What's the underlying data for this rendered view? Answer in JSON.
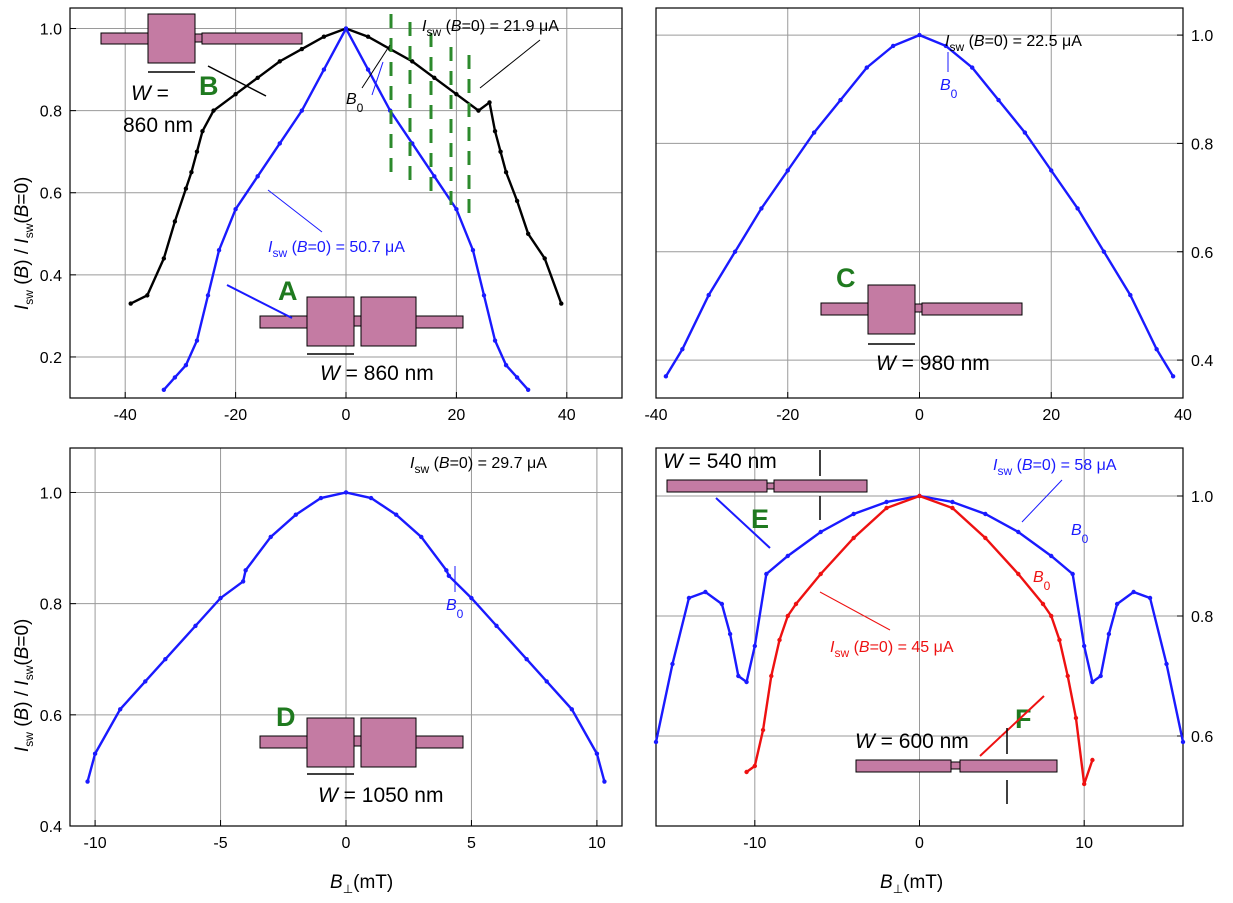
{
  "axis_labels": {
    "y_left": "I_sw (B) / I_sw (B=0)",
    "x_bottom": "B⊥ (mT)"
  },
  "colors": {
    "black": "#000000",
    "blue": "#1a1aff",
    "red": "#ee1111",
    "green_letter": "#1f7a1f",
    "device_fill": "#c47ba3",
    "guide_dash": "#2c8a2c"
  },
  "chart_data": [
    {
      "panel": "top-left",
      "type": "scatter",
      "xlim": [
        -50,
        50
      ],
      "ylim": [
        0.1,
        1.05
      ],
      "xticks": [
        -40,
        -20,
        0,
        20,
        40
      ],
      "yticks": [
        0.2,
        0.4,
        0.6,
        0.8,
        1.0
      ],
      "grid": true,
      "series": [
        {
          "name": "B",
          "color": "#000000",
          "x": [
            -39,
            -36,
            -33,
            -31,
            -29,
            -28,
            -27,
            -26,
            -24,
            -20,
            -16,
            -12,
            -8,
            -4,
            0,
            4,
            8,
            12,
            16,
            20,
            24,
            26,
            27,
            28,
            29,
            31,
            33,
            36,
            39
          ],
          "y": [
            0.33,
            0.35,
            0.44,
            0.53,
            0.61,
            0.65,
            0.7,
            0.75,
            0.8,
            0.84,
            0.88,
            0.92,
            0.95,
            0.98,
            1.0,
            0.98,
            0.95,
            0.92,
            0.88,
            0.84,
            0.8,
            0.82,
            0.75,
            0.7,
            0.65,
            0.58,
            0.5,
            0.44,
            0.33
          ]
        },
        {
          "name": "A",
          "color": "#1a1aff",
          "x": [
            -33,
            -31,
            -29,
            -27,
            -25,
            -23,
            -20,
            -16,
            -12,
            -8,
            -4,
            0,
            4,
            8,
            12,
            16,
            20,
            23,
            25,
            27,
            29,
            31,
            33
          ],
          "y": [
            0.12,
            0.15,
            0.18,
            0.24,
            0.35,
            0.46,
            0.56,
            0.64,
            0.72,
            0.8,
            0.9,
            1.0,
            0.9,
            0.8,
            0.72,
            0.64,
            0.56,
            0.46,
            0.35,
            0.24,
            0.18,
            0.15,
            0.12
          ]
        }
      ],
      "annotations": [
        "I_sw (B=0) = 21.9 μA",
        "I_sw (B=0) = 50.7 μA",
        "B_0",
        "B",
        "A",
        "W =",
        "860 nm",
        "W = 860 nm"
      ]
    },
    {
      "panel": "top-right",
      "type": "scatter",
      "xlim": [
        -40,
        40
      ],
      "ylim": [
        0.33,
        1.05
      ],
      "xticks": [
        -40,
        -20,
        0,
        20,
        40
      ],
      "yticks": [
        0.4,
        0.6,
        0.8,
        1.0
      ],
      "grid": true,
      "series": [
        {
          "name": "C",
          "color": "#1a1aff",
          "x": [
            -38.5,
            -36,
            -32,
            -28,
            -24,
            -20,
            -16,
            -12,
            -8,
            -4,
            0,
            4,
            8,
            12,
            16,
            20,
            24,
            28,
            32,
            36,
            38.5
          ],
          "y": [
            0.37,
            0.42,
            0.52,
            0.6,
            0.68,
            0.75,
            0.82,
            0.88,
            0.94,
            0.98,
            1.0,
            0.98,
            0.94,
            0.88,
            0.82,
            0.75,
            0.68,
            0.6,
            0.52,
            0.42,
            0.37
          ]
        }
      ],
      "annotations": [
        "I_sw (B=0) = 22.5 μA",
        "B_0",
        "C",
        "W = 980 nm"
      ]
    },
    {
      "panel": "bottom-left",
      "type": "scatter",
      "xlim": [
        -11,
        11
      ],
      "ylim": [
        0.4,
        1.08
      ],
      "xticks": [
        -10,
        -5,
        0,
        5,
        10
      ],
      "yticks": [
        0.4,
        0.6,
        0.8,
        1.0
      ],
      "grid": true,
      "series": [
        {
          "name": "D",
          "color": "#1a1aff",
          "x": [
            -10.3,
            -10,
            -9,
            -8,
            -7.2,
            -6,
            -5,
            -4.1,
            -4,
            -3,
            -2,
            -1,
            0,
            1,
            2,
            3,
            4,
            4.1,
            5,
            6,
            7.2,
            8,
            9,
            10,
            10.3
          ],
          "y": [
            0.48,
            0.53,
            0.61,
            0.66,
            0.7,
            0.76,
            0.81,
            0.84,
            0.86,
            0.92,
            0.96,
            0.99,
            1.0,
            0.99,
            0.96,
            0.92,
            0.86,
            0.85,
            0.81,
            0.76,
            0.7,
            0.66,
            0.61,
            0.53,
            0.48
          ]
        }
      ],
      "annotations": [
        "I_sw (B=0) = 29.7 μA",
        "B_0",
        "D",
        "W = 1050 nm"
      ]
    },
    {
      "panel": "bottom-right",
      "type": "scatter",
      "xlim": [
        -16,
        16
      ],
      "ylim": [
        0.45,
        1.08
      ],
      "xticks": [
        -10,
        0,
        10
      ],
      "yticks": [
        0.6,
        0.8,
        1.0
      ],
      "grid": true,
      "series": [
        {
          "name": "E",
          "color": "#1a1aff",
          "x": [
            -16,
            -15,
            -14,
            -13,
            -12,
            -11.5,
            -11,
            -10.5,
            -10,
            -9.3,
            -8,
            -6,
            -4,
            -2,
            0,
            2,
            4,
            6,
            8,
            9.3,
            10,
            10.5,
            11,
            11.5,
            12,
            13,
            14,
            15,
            16
          ],
          "y": [
            0.59,
            0.72,
            0.83,
            0.84,
            0.82,
            0.77,
            0.7,
            0.69,
            0.75,
            0.87,
            0.9,
            0.94,
            0.97,
            0.99,
            1.0,
            0.99,
            0.97,
            0.94,
            0.9,
            0.87,
            0.75,
            0.69,
            0.7,
            0.77,
            0.82,
            0.84,
            0.83,
            0.72,
            0.59
          ]
        },
        {
          "name": "F",
          "color": "#ee1111",
          "x": [
            -10.5,
            -10,
            -9.5,
            -9,
            -8.5,
            -8,
            -7.5,
            -6,
            -4,
            -2,
            0,
            2,
            4,
            6,
            7.5,
            8,
            8.5,
            9,
            9.5,
            10,
            10.5
          ],
          "y": [
            0.54,
            0.55,
            0.61,
            0.7,
            0.76,
            0.8,
            0.82,
            0.87,
            0.93,
            0.98,
            1.0,
            0.98,
            0.93,
            0.87,
            0.82,
            0.8,
            0.76,
            0.7,
            0.63,
            0.52,
            0.56
          ]
        }
      ],
      "annotations": [
        "I_sw (B=0) = 58 μA",
        "I_sw (B=0) = 45 μA",
        "B_0",
        "B_0",
        "E",
        "F",
        "W = 540 nm",
        "W = 600 nm"
      ]
    }
  ]
}
